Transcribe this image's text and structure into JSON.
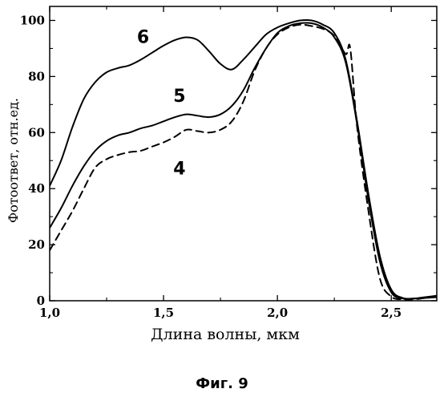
{
  "chart_data": {
    "type": "line",
    "xlabel": "Длина волны, мкм",
    "ylabel": "Фотоответ, отн.ед.",
    "xlim": [
      1.0,
      2.7
    ],
    "ylim": [
      0,
      105
    ],
    "x_ticks": [
      1.0,
      1.5,
      2.0,
      2.5
    ],
    "x_tick_labels": [
      "1,0",
      "1,5",
      "2,0",
      "2,5"
    ],
    "y_ticks": [
      0,
      20,
      40,
      60,
      80,
      100
    ],
    "y_tick_labels": [
      "0",
      "20",
      "40",
      "60",
      "80",
      "100"
    ],
    "grid": false,
    "series": [
      {
        "name": "6",
        "style": "solid",
        "points": [
          [
            1.0,
            41
          ],
          [
            1.05,
            50
          ],
          [
            1.1,
            62
          ],
          [
            1.15,
            72
          ],
          [
            1.2,
            78
          ],
          [
            1.25,
            81.5
          ],
          [
            1.3,
            83
          ],
          [
            1.35,
            84
          ],
          [
            1.4,
            86
          ],
          [
            1.45,
            88.5
          ],
          [
            1.5,
            91
          ],
          [
            1.55,
            93
          ],
          [
            1.6,
            94
          ],
          [
            1.65,
            93
          ],
          [
            1.7,
            89
          ],
          [
            1.75,
            84.5
          ],
          [
            1.8,
            82.5
          ],
          [
            1.85,
            86
          ],
          [
            1.9,
            90.5
          ],
          [
            1.95,
            95
          ],
          [
            2.0,
            97.5
          ],
          [
            2.05,
            99
          ],
          [
            2.1,
            100
          ],
          [
            2.15,
            100
          ],
          [
            2.2,
            98.5
          ],
          [
            2.25,
            95.5
          ],
          [
            2.3,
            86
          ],
          [
            2.35,
            64
          ],
          [
            2.4,
            38
          ],
          [
            2.45,
            16
          ],
          [
            2.5,
            4
          ],
          [
            2.55,
            1
          ],
          [
            2.6,
            0.8
          ],
          [
            2.65,
            1
          ],
          [
            2.7,
            1.3
          ]
        ]
      },
      {
        "name": "5",
        "style": "solid",
        "points": [
          [
            1.0,
            26
          ],
          [
            1.05,
            33
          ],
          [
            1.1,
            41
          ],
          [
            1.15,
            48
          ],
          [
            1.2,
            53.5
          ],
          [
            1.25,
            57
          ],
          [
            1.3,
            59
          ],
          [
            1.35,
            60
          ],
          [
            1.4,
            61.5
          ],
          [
            1.45,
            62.5
          ],
          [
            1.5,
            64
          ],
          [
            1.55,
            65.5
          ],
          [
            1.6,
            66.5
          ],
          [
            1.65,
            66
          ],
          [
            1.7,
            65.5
          ],
          [
            1.75,
            66.5
          ],
          [
            1.8,
            69.5
          ],
          [
            1.85,
            75
          ],
          [
            1.9,
            83
          ],
          [
            1.95,
            90
          ],
          [
            2.0,
            95.5
          ],
          [
            2.05,
            98
          ],
          [
            2.1,
            99
          ],
          [
            2.15,
            99
          ],
          [
            2.2,
            97.5
          ],
          [
            2.25,
            94
          ],
          [
            2.3,
            85
          ],
          [
            2.35,
            63
          ],
          [
            2.4,
            36
          ],
          [
            2.45,
            14
          ],
          [
            2.5,
            3
          ],
          [
            2.55,
            0.8
          ],
          [
            2.6,
            0.8
          ],
          [
            2.65,
            1.3
          ],
          [
            2.7,
            1.8
          ]
        ]
      },
      {
        "name": "4",
        "style": "dashed",
        "points": [
          [
            1.0,
            18
          ],
          [
            1.05,
            25
          ],
          [
            1.1,
            32
          ],
          [
            1.15,
            40
          ],
          [
            1.2,
            47.5
          ],
          [
            1.25,
            50.5
          ],
          [
            1.3,
            52
          ],
          [
            1.35,
            53
          ],
          [
            1.4,
            53.5
          ],
          [
            1.45,
            55
          ],
          [
            1.5,
            56.5
          ],
          [
            1.55,
            58.5
          ],
          [
            1.6,
            61
          ],
          [
            1.65,
            60.5
          ],
          [
            1.7,
            60
          ],
          [
            1.75,
            61
          ],
          [
            1.8,
            64
          ],
          [
            1.85,
            71
          ],
          [
            1.9,
            82
          ],
          [
            1.95,
            90
          ],
          [
            2.0,
            95
          ],
          [
            2.05,
            97.5
          ],
          [
            2.1,
            98.5
          ],
          [
            2.15,
            98
          ],
          [
            2.2,
            97
          ],
          [
            2.25,
            94.5
          ],
          [
            2.3,
            88
          ],
          [
            2.32,
            90
          ],
          [
            2.35,
            62
          ],
          [
            2.4,
            32
          ],
          [
            2.45,
            8
          ],
          [
            2.5,
            1.5
          ],
          [
            2.55,
            0.5
          ],
          [
            2.6,
            0.5
          ],
          [
            2.65,
            1
          ],
          [
            2.7,
            1.5
          ]
        ]
      }
    ],
    "series_labels": [
      {
        "text": "6",
        "x": 1.41,
        "y": 92
      },
      {
        "text": "5",
        "x": 1.57,
        "y": 71
      },
      {
        "text": "4",
        "x": 1.57,
        "y": 45
      }
    ]
  },
  "caption": "Фиг. 9"
}
